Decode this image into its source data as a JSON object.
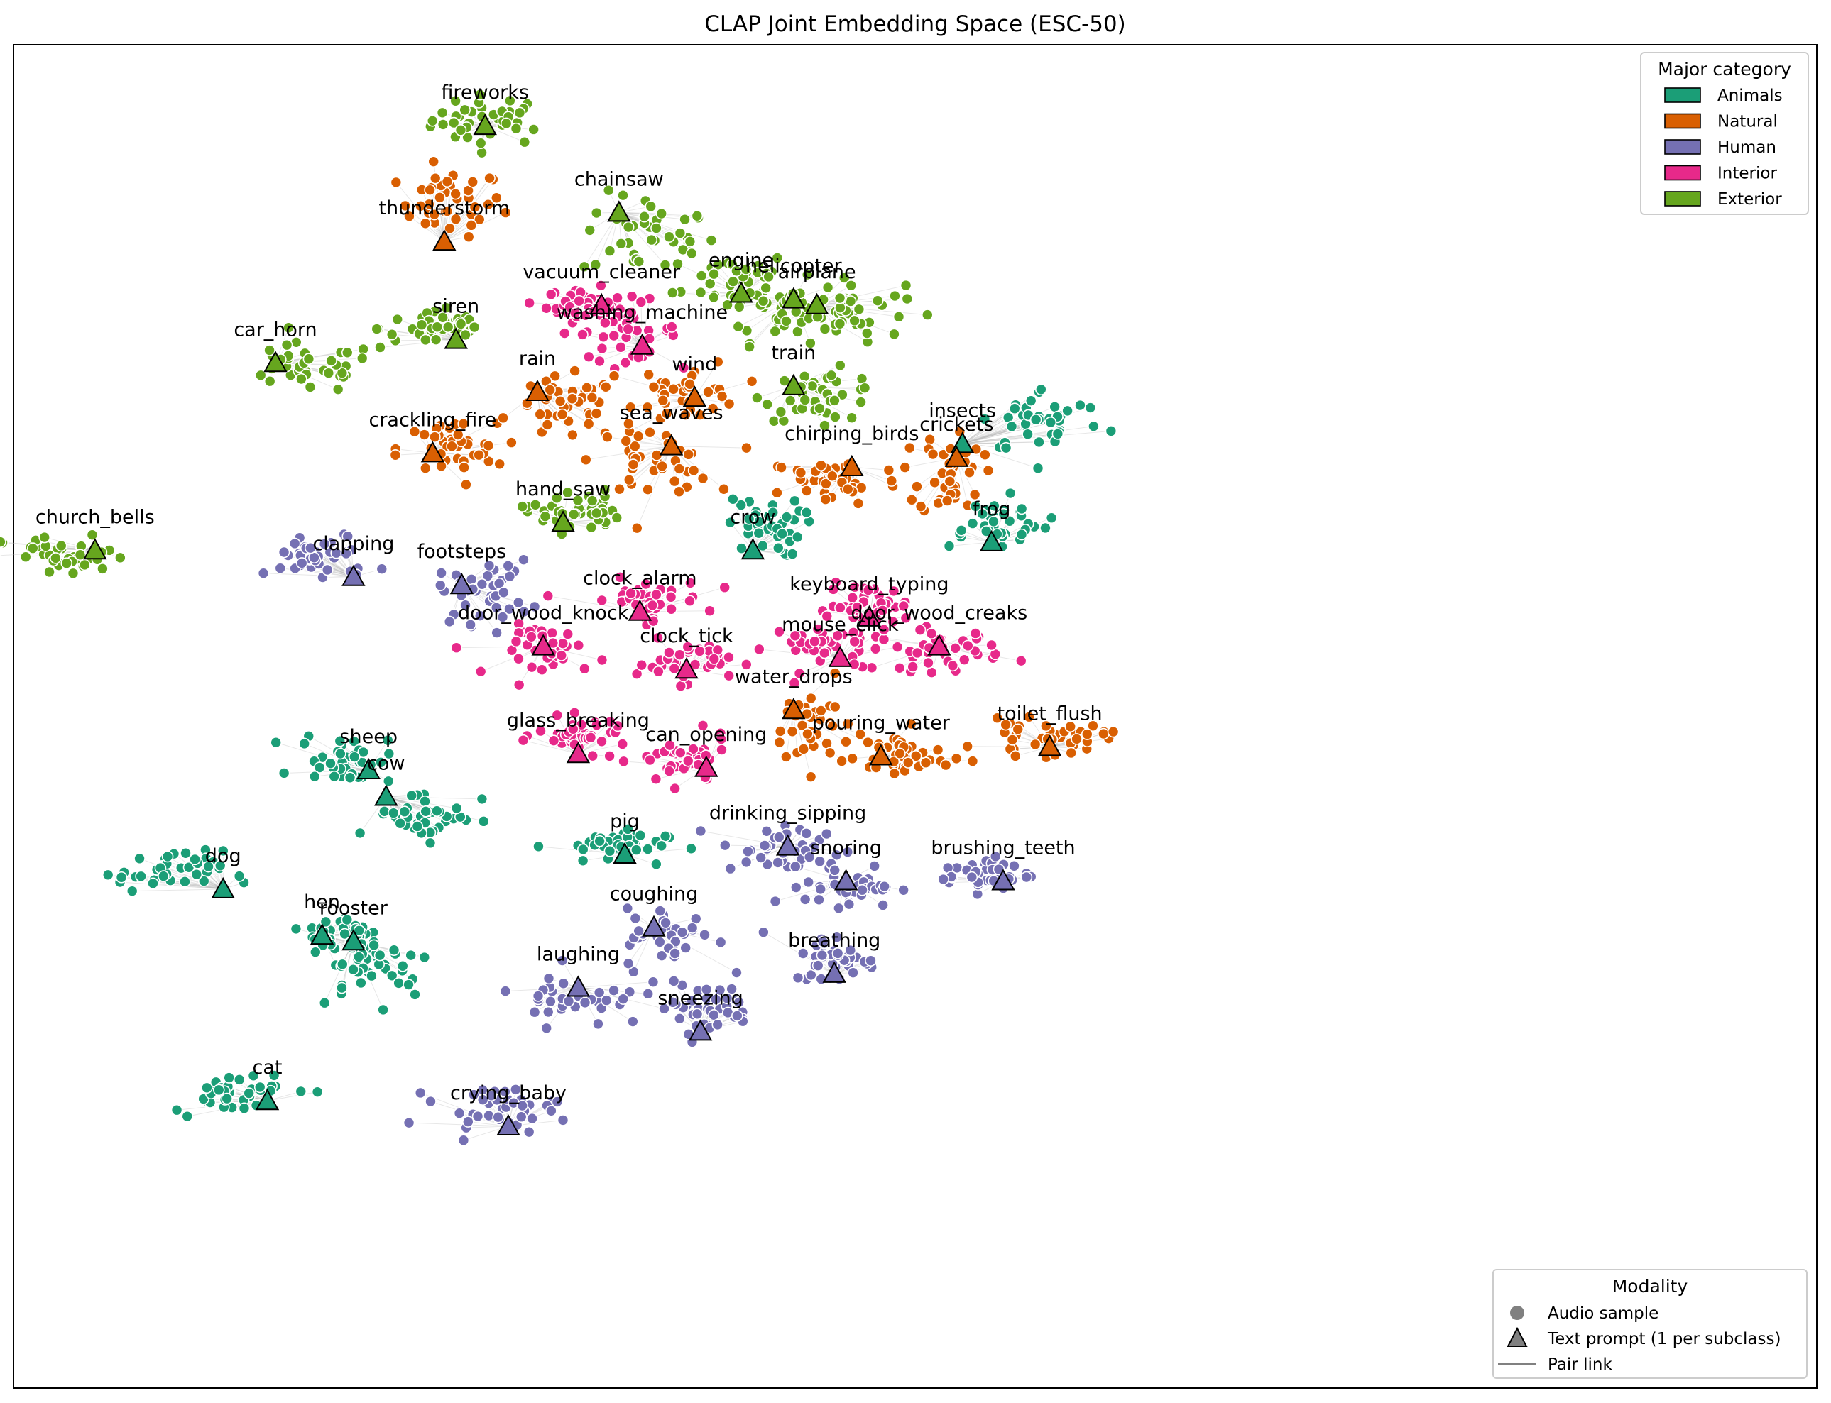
{
  "chart_data": {
    "type": "scatter",
    "title": "CLAP Joint Embedding Space (ESC-50)",
    "xlabel": "",
    "ylabel": "",
    "grid": false,
    "axes_ticks": false,
    "legend_category": {
      "title": "Major category",
      "placement": "top-right",
      "entries": [
        {
          "name": "Animals",
          "color": "#1b9e77"
        },
        {
          "name": "Natural",
          "color": "#d95f02"
        },
        {
          "name": "Human",
          "color": "#7570b3"
        },
        {
          "name": "Interior",
          "color": "#e7298a"
        },
        {
          "name": "Exterior",
          "color": "#66a61e"
        }
      ]
    },
    "legend_modality": {
      "title": "Modality",
      "placement": "bottom-right",
      "entries": [
        {
          "name": "Audio sample",
          "marker": "circle"
        },
        {
          "name": "Text prompt (1 per subclass)",
          "marker": "triangle"
        },
        {
          "name": "Pair link",
          "marker": "line"
        }
      ]
    },
    "clusters": [
      {
        "label": "fireworks",
        "category": "Exterior",
        "prompt": [
          2.75,
          9.45
        ],
        "center": [
          2.8,
          9.5
        ],
        "spread": [
          0.28,
          0.12
        ]
      },
      {
        "label": "thunderstorm",
        "category": "Natural",
        "prompt": [
          2.4,
          8.45
        ],
        "center": [
          2.45,
          8.78
        ],
        "spread": [
          0.25,
          0.16
        ]
      },
      {
        "label": "chainsaw",
        "category": "Exterior",
        "prompt": [
          3.9,
          8.7
        ],
        "center": [
          4.15,
          8.5
        ],
        "spread": [
          0.32,
          0.2
        ]
      },
      {
        "label": "engine",
        "category": "Exterior",
        "prompt": [
          4.95,
          8.0
        ],
        "center": [
          4.92,
          8.12
        ],
        "spread": [
          0.25,
          0.14
        ]
      },
      {
        "label": "helicopter",
        "category": "Exterior",
        "prompt": [
          5.4,
          7.95
        ],
        "center": [
          5.3,
          7.85
        ],
        "spread": [
          0.3,
          0.15
        ]
      },
      {
        "label": "airplane",
        "category": "Exterior",
        "prompt": [
          5.6,
          7.9
        ],
        "center": [
          5.85,
          7.85
        ],
        "spread": [
          0.28,
          0.14
        ]
      },
      {
        "label": "vacuum_cleaner",
        "category": "Interior",
        "prompt": [
          3.75,
          7.9
        ],
        "center": [
          3.6,
          7.9
        ],
        "spread": [
          0.18,
          0.08
        ]
      },
      {
        "label": "washing_machine",
        "category": "Interior",
        "prompt": [
          4.1,
          7.55
        ],
        "center": [
          3.95,
          7.68
        ],
        "spread": [
          0.25,
          0.14
        ]
      },
      {
        "label": "siren",
        "category": "Exterior",
        "prompt": [
          2.5,
          7.6
        ],
        "center": [
          2.35,
          7.7
        ],
        "spread": [
          0.28,
          0.1
        ]
      },
      {
        "label": "car_horn",
        "category": "Exterior",
        "prompt": [
          0.95,
          7.4
        ],
        "center": [
          1.2,
          7.35
        ],
        "spread": [
          0.35,
          0.12
        ]
      },
      {
        "label": "rain",
        "category": "Natural",
        "prompt": [
          3.2,
          7.15
        ],
        "center": [
          3.45,
          7.0
        ],
        "spread": [
          0.25,
          0.15
        ]
      },
      {
        "label": "wind",
        "category": "Natural",
        "prompt": [
          4.55,
          7.1
        ],
        "center": [
          4.5,
          7.15
        ],
        "spread": [
          0.25,
          0.15
        ]
      },
      {
        "label": "train",
        "category": "Exterior",
        "prompt": [
          5.4,
          7.2
        ],
        "center": [
          5.65,
          7.12
        ],
        "spread": [
          0.28,
          0.12
        ]
      },
      {
        "label": "sea_waves",
        "category": "Natural",
        "prompt": [
          4.35,
          6.68
        ],
        "center": [
          4.2,
          6.55
        ],
        "spread": [
          0.28,
          0.16
        ]
      },
      {
        "label": "crackling_fire",
        "category": "Natural",
        "prompt": [
          2.3,
          6.62
        ],
        "center": [
          2.45,
          6.65
        ],
        "spread": [
          0.25,
          0.15
        ]
      },
      {
        "label": "chirping_birds",
        "category": "Natural",
        "prompt": [
          5.9,
          6.5
        ],
        "center": [
          5.75,
          6.38
        ],
        "spread": [
          0.32,
          0.12
        ]
      },
      {
        "label": "insects",
        "category": "Animals",
        "prompt": [
          6.85,
          6.7
        ],
        "center": [
          7.55,
          6.9
        ],
        "spread": [
          0.3,
          0.16
        ]
      },
      {
        "label": "crickets",
        "category": "Natural",
        "prompt": [
          6.8,
          6.58
        ],
        "center": [
          6.75,
          6.45
        ],
        "spread": [
          0.15,
          0.22
        ]
      },
      {
        "label": "frog",
        "category": "Animals",
        "prompt": [
          7.1,
          5.85
        ],
        "center": [
          7.1,
          6.02
        ],
        "spread": [
          0.28,
          0.12
        ]
      },
      {
        "label": "crow",
        "category": "Animals",
        "prompt": [
          5.05,
          5.78
        ],
        "center": [
          5.15,
          5.98
        ],
        "spread": [
          0.18,
          0.14
        ]
      },
      {
        "label": "hand_saw",
        "category": "Exterior",
        "prompt": [
          3.42,
          6.02
        ],
        "center": [
          3.5,
          6.12
        ],
        "spread": [
          0.22,
          0.1
        ]
      },
      {
        "label": "church_bells",
        "category": "Exterior",
        "prompt": [
          -0.6,
          5.78
        ],
        "center": [
          -0.85,
          5.72
        ],
        "spread": [
          0.3,
          0.1
        ]
      },
      {
        "label": "clapping",
        "category": "Human",
        "prompt": [
          1.62,
          5.55
        ],
        "center": [
          1.35,
          5.72
        ],
        "spread": [
          0.25,
          0.12
        ]
      },
      {
        "label": "footsteps",
        "category": "Human",
        "prompt": [
          2.55,
          5.48
        ],
        "center": [
          2.75,
          5.42
        ],
        "spread": [
          0.22,
          0.15
        ]
      },
      {
        "label": "clock_alarm",
        "category": "Interior",
        "prompt": [
          4.08,
          5.25
        ],
        "center": [
          4.1,
          5.35
        ],
        "spread": [
          0.3,
          0.1
        ]
      },
      {
        "label": "keyboard_typing",
        "category": "Interior",
        "prompt": [
          6.05,
          5.2
        ],
        "center": [
          6.05,
          5.3
        ],
        "spread": [
          0.2,
          0.1
        ]
      },
      {
        "label": "door_wood_knock",
        "category": "Interior",
        "prompt": [
          3.25,
          4.95
        ],
        "center": [
          3.35,
          4.92
        ],
        "spread": [
          0.25,
          0.12
        ]
      },
      {
        "label": "door_wood_creaks",
        "category": "Interior",
        "prompt": [
          6.65,
          4.95
        ],
        "center": [
          6.65,
          4.92
        ],
        "spread": [
          0.3,
          0.1
        ]
      },
      {
        "label": "mouse_click",
        "category": "Interior",
        "prompt": [
          5.8,
          4.85
        ],
        "center": [
          5.75,
          4.95
        ],
        "spread": [
          0.3,
          0.12
        ]
      },
      {
        "label": "clock_tick",
        "category": "Interior",
        "prompt": [
          4.48,
          4.75
        ],
        "center": [
          4.45,
          4.82
        ],
        "spread": [
          0.22,
          0.1
        ]
      },
      {
        "label": "water_drops",
        "category": "Natural",
        "prompt": [
          5.4,
          4.4
        ],
        "center": [
          5.55,
          4.25
        ],
        "spread": [
          0.2,
          0.2
        ]
      },
      {
        "label": "glass_breaking",
        "category": "Interior",
        "prompt": [
          3.55,
          4.02
        ],
        "center": [
          3.6,
          4.18
        ],
        "spread": [
          0.22,
          0.08
        ]
      },
      {
        "label": "can_opening",
        "category": "Interior",
        "prompt": [
          4.65,
          3.9
        ],
        "center": [
          4.45,
          3.95
        ],
        "spread": [
          0.22,
          0.12
        ]
      },
      {
        "label": "pouring_water",
        "category": "Natural",
        "prompt": [
          6.15,
          4.0
        ],
        "center": [
          6.35,
          4.0
        ],
        "spread": [
          0.22,
          0.12
        ]
      },
      {
        "label": "toilet_flush",
        "category": "Natural",
        "prompt": [
          7.6,
          4.08
        ],
        "center": [
          7.55,
          4.15
        ],
        "spread": [
          0.3,
          0.08
        ]
      },
      {
        "label": "sheep",
        "category": "Animals",
        "prompt": [
          1.75,
          3.88
        ],
        "center": [
          1.55,
          3.98
        ],
        "spread": [
          0.22,
          0.12
        ]
      },
      {
        "label": "cow",
        "category": "Animals",
        "prompt": [
          1.9,
          3.65
        ],
        "center": [
          2.25,
          3.5
        ],
        "spread": [
          0.25,
          0.12
        ]
      },
      {
        "label": "pig",
        "category": "Animals",
        "prompt": [
          3.95,
          3.15
        ],
        "center": [
          3.8,
          3.22
        ],
        "spread": [
          0.28,
          0.08
        ]
      },
      {
        "label": "dog",
        "category": "Animals",
        "prompt": [
          0.5,
          2.85
        ],
        "center": [
          0.05,
          3.0
        ],
        "spread": [
          0.25,
          0.1
        ]
      },
      {
        "label": "drinking_sipping",
        "category": "Human",
        "prompt": [
          5.35,
          3.22
        ],
        "center": [
          5.3,
          3.18
        ],
        "spread": [
          0.3,
          0.12
        ]
      },
      {
        "label": "snoring",
        "category": "Human",
        "prompt": [
          5.85,
          2.92
        ],
        "center": [
          5.9,
          2.88
        ],
        "spread": [
          0.22,
          0.1
        ]
      },
      {
        "label": "brushing_teeth",
        "category": "Human",
        "prompt": [
          7.2,
          2.92
        ],
        "center": [
          7.05,
          2.98
        ],
        "spread": [
          0.22,
          0.08
        ]
      },
      {
        "label": "hen",
        "category": "Animals",
        "prompt": [
          1.35,
          2.45
        ],
        "center": [
          1.55,
          2.45
        ],
        "spread": [
          0.18,
          0.12
        ]
      },
      {
        "label": "rooster",
        "category": "Animals",
        "prompt": [
          1.62,
          2.4
        ],
        "center": [
          1.8,
          2.22
        ],
        "spread": [
          0.28,
          0.18
        ]
      },
      {
        "label": "coughing",
        "category": "Human",
        "prompt": [
          4.2,
          2.52
        ],
        "center": [
          4.35,
          2.42
        ],
        "spread": [
          0.22,
          0.15
        ]
      },
      {
        "label": "breathing",
        "category": "Human",
        "prompt": [
          5.75,
          2.12
        ],
        "center": [
          5.75,
          2.25
        ],
        "spread": [
          0.2,
          0.12
        ]
      },
      {
        "label": "laughing",
        "category": "Human",
        "prompt": [
          3.55,
          2.0
        ],
        "center": [
          3.55,
          1.92
        ],
        "spread": [
          0.3,
          0.14
        ]
      },
      {
        "label": "sneezing",
        "category": "Human",
        "prompt": [
          4.6,
          1.62
        ],
        "center": [
          4.65,
          1.82
        ],
        "spread": [
          0.22,
          0.12
        ]
      },
      {
        "label": "cat",
        "category": "Animals",
        "prompt": [
          0.88,
          1.02
        ],
        "center": [
          0.6,
          1.1
        ],
        "spread": [
          0.3,
          0.1
        ]
      },
      {
        "label": "crying_baby",
        "category": "Human",
        "prompt": [
          2.95,
          0.8
        ],
        "center": [
          2.85,
          0.95
        ],
        "spread": [
          0.3,
          0.1
        ]
      }
    ]
  }
}
